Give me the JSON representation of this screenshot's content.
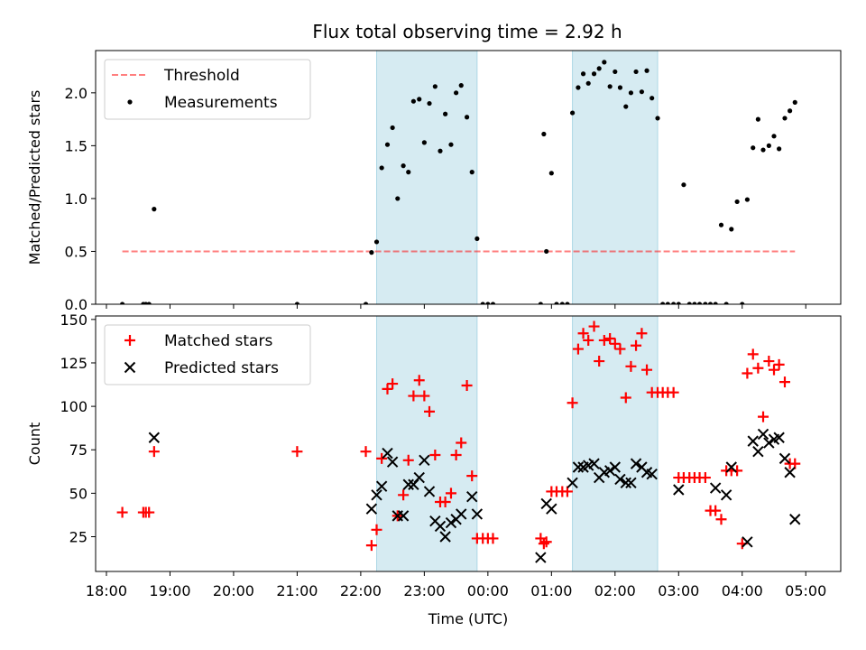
{
  "chart_data": [
    {
      "type": "scatter",
      "title": "Flux total observing time = 2.92 h",
      "xlabel": "",
      "ylabel": "Matched/Predicted stars",
      "xlim": [
        17.83,
        29.55
      ],
      "ylim": [
        0,
        2.4
      ],
      "yticks": [
        0.0,
        0.5,
        1.0,
        1.5,
        2.0
      ],
      "ytick_labels": [
        "0.0",
        "0.5",
        "1.0",
        "1.5",
        "2.0"
      ],
      "shaded_intervals": [
        [
          22.25,
          23.83
        ],
        [
          25.33,
          26.67
        ]
      ],
      "threshold": {
        "name": "Threshold",
        "value": 0.5,
        "x_range": [
          18.25,
          28.83
        ],
        "color": "#ff0000"
      },
      "legend": [
        "Threshold",
        "Measurements"
      ],
      "legend_location": "upper left",
      "series": [
        {
          "name": "Measurements",
          "marker": "dot",
          "color": "#000000",
          "x": [
            18.25,
            18.58,
            18.62,
            18.67,
            18.75,
            21.0,
            22.08,
            22.17,
            22.25,
            22.33,
            22.42,
            22.5,
            22.58,
            22.67,
            22.75,
            22.83,
            22.92,
            23.0,
            23.08,
            23.17,
            23.25,
            23.33,
            23.42,
            23.5,
            23.58,
            23.67,
            23.75,
            23.83,
            23.92,
            24.0,
            24.08,
            24.83,
            24.88,
            24.92,
            25.0,
            25.08,
            25.17,
            25.25,
            25.33,
            25.42,
            25.5,
            25.58,
            25.67,
            25.75,
            25.83,
            25.92,
            26.0,
            26.08,
            26.17,
            26.25,
            26.33,
            26.42,
            26.5,
            26.58,
            26.67,
            26.75,
            26.83,
            26.92,
            27.0,
            27.08,
            27.17,
            27.25,
            27.33,
            27.42,
            27.5,
            27.58,
            27.67,
            27.75,
            27.83,
            27.92,
            28.0,
            28.08,
            28.17,
            28.25,
            28.33,
            28.42,
            28.5,
            28.58,
            28.67,
            28.75,
            28.83
          ],
          "y": [
            0.0,
            0.0,
            0.0,
            0.0,
            0.9,
            0.0,
            0.0,
            0.49,
            0.59,
            1.29,
            1.51,
            1.67,
            1.0,
            1.31,
            1.25,
            1.92,
            1.94,
            1.53,
            1.9,
            2.06,
            1.45,
            1.8,
            1.51,
            2.0,
            2.07,
            1.77,
            1.25,
            0.62,
            0.0,
            0.0,
            0.0,
            0.0,
            1.61,
            0.5,
            1.24,
            0.0,
            0.0,
            0.0,
            1.81,
            2.05,
            2.18,
            2.09,
            2.18,
            2.23,
            2.29,
            2.06,
            2.2,
            2.05,
            1.87,
            2.0,
            2.2,
            2.01,
            2.21,
            1.95,
            1.76,
            0.0,
            0.0,
            0.0,
            0.0,
            1.13,
            0.0,
            0.0,
            0.0,
            0.0,
            0.0,
            0.0,
            0.75,
            0.0,
            0.71,
            0.97,
            0.0,
            0.99,
            1.48,
            1.75,
            1.46,
            1.5,
            1.59,
            1.47,
            1.76,
            1.83,
            1.91
          ]
        }
      ]
    },
    {
      "type": "scatter",
      "title": "",
      "xlabel": "Time (UTC)",
      "ylabel": "Count",
      "xlim": [
        17.83,
        29.55
      ],
      "ylim": [
        5,
        152
      ],
      "yticks": [
        25,
        50,
        75,
        100,
        125,
        150
      ],
      "ytick_labels": [
        "25",
        "50",
        "75",
        "100",
        "125",
        "150"
      ],
      "xticks": [
        18,
        19,
        20,
        21,
        22,
        23,
        24,
        25,
        26,
        27,
        28,
        29
      ],
      "xtick_labels": [
        "18:00",
        "19:00",
        "20:00",
        "21:00",
        "22:00",
        "23:00",
        "00:00",
        "01:00",
        "02:00",
        "03:00",
        "04:00",
        "05:00"
      ],
      "shaded_intervals": [
        [
          22.25,
          23.83
        ],
        [
          25.33,
          26.67
        ]
      ],
      "legend": [
        "Matched stars",
        "Predicted stars"
      ],
      "legend_location": "upper left",
      "series": [
        {
          "name": "Matched stars",
          "marker": "plus",
          "color": "#ff0000",
          "x": [
            18.25,
            18.58,
            18.62,
            18.67,
            18.75,
            21.0,
            22.08,
            22.17,
            22.25,
            22.33,
            22.42,
            22.5,
            22.58,
            22.67,
            22.75,
            22.83,
            22.92,
            23.0,
            23.08,
            23.17,
            23.25,
            23.33,
            23.42,
            23.5,
            23.58,
            23.67,
            23.75,
            23.83,
            23.92,
            24.0,
            24.08,
            24.83,
            24.88,
            24.92,
            25.0,
            25.08,
            25.17,
            25.25,
            25.33,
            25.42,
            25.5,
            25.58,
            25.67,
            25.75,
            25.83,
            25.92,
            26.0,
            26.08,
            26.17,
            26.25,
            26.33,
            26.42,
            26.5,
            26.58,
            26.67,
            26.75,
            26.83,
            26.92,
            27.0,
            27.08,
            27.17,
            27.25,
            27.33,
            27.42,
            27.5,
            27.58,
            27.67,
            27.75,
            27.83,
            27.92,
            28.0,
            28.08,
            28.17,
            28.25,
            28.33,
            28.42,
            28.5,
            28.58,
            28.67,
            28.75,
            28.83
          ],
          "y": [
            39,
            39,
            39,
            39,
            74,
            74,
            74,
            20,
            29,
            70,
            110,
            113,
            37,
            49,
            69,
            106,
            115,
            106,
            97,
            72,
            45,
            45,
            50,
            72,
            79,
            112,
            60,
            24,
            24,
            24,
            24,
            24,
            21,
            22,
            51,
            51,
            51,
            51,
            102,
            133,
            142,
            138,
            146,
            126,
            138,
            139,
            136,
            133,
            105,
            123,
            135,
            142,
            121,
            108,
            108,
            108,
            108,
            108,
            59,
            59,
            59,
            59,
            59,
            59,
            40,
            40,
            35,
            63,
            63,
            63,
            21,
            119,
            130,
            122,
            94,
            126,
            121,
            124,
            114,
            67,
            67
          ],
          "x_matched_override": [
            18.25,
            18.58,
            18.62,
            18.67,
            18.75,
            21.0,
            22.08,
            22.17,
            22.25,
            22.33,
            22.42,
            22.5,
            22.58,
            22.67,
            22.75,
            22.83,
            22.92,
            23.0,
            23.08,
            23.17,
            23.25,
            23.33,
            23.42,
            23.5,
            23.58,
            23.67,
            23.75,
            23.83,
            23.92,
            24.0,
            24.08,
            24.83,
            24.88,
            24.92,
            25.0,
            25.08,
            25.17,
            25.25,
            25.33,
            25.42,
            25.5,
            25.58,
            25.67,
            25.75,
            25.83,
            25.92,
            26.0,
            26.08,
            26.17,
            26.25,
            26.33,
            26.42,
            26.5,
            26.58,
            26.67,
            26.75,
            26.83,
            26.92,
            27.0,
            27.08,
            27.17,
            27.25,
            27.33,
            27.42,
            27.5,
            27.58,
            27.67,
            27.75,
            27.83,
            27.92,
            28.0,
            28.08,
            28.17,
            28.25,
            28.33,
            28.42,
            28.5,
            28.58,
            28.67,
            28.75,
            28.83
          ]
        },
        {
          "name": "Predicted stars",
          "marker": "x",
          "color": "#000000",
          "x": [
            18.75,
            22.17,
            22.25,
            22.33,
            22.42,
            22.5,
            22.58,
            22.67,
            22.75,
            22.83,
            22.92,
            23.0,
            23.08,
            23.17,
            23.25,
            23.33,
            23.42,
            23.5,
            23.58,
            23.75,
            23.83,
            24.83,
            24.92,
            25.0,
            25.33,
            25.42,
            25.5,
            25.58,
            25.67,
            25.75,
            25.83,
            25.92,
            26.0,
            26.08,
            26.17,
            26.25,
            26.33,
            26.42,
            26.5,
            26.58,
            27.0,
            27.58,
            27.75,
            27.83,
            28.08,
            28.17,
            28.25,
            28.33,
            28.42,
            28.5,
            28.58,
            28.67,
            28.75,
            28.83
          ],
          "y": [
            82,
            41,
            49,
            54,
            73,
            68,
            37,
            37,
            55,
            55,
            59,
            69,
            51,
            34,
            31,
            25,
            33,
            35,
            38,
            48,
            38,
            13,
            44,
            41,
            56,
            65,
            65,
            66,
            67,
            59,
            62,
            63,
            65,
            58,
            56,
            56,
            67,
            65,
            62,
            61,
            52,
            53,
            49,
            65,
            22,
            80,
            74,
            84,
            79,
            81,
            82,
            70,
            62,
            35
          ]
        }
      ]
    }
  ]
}
